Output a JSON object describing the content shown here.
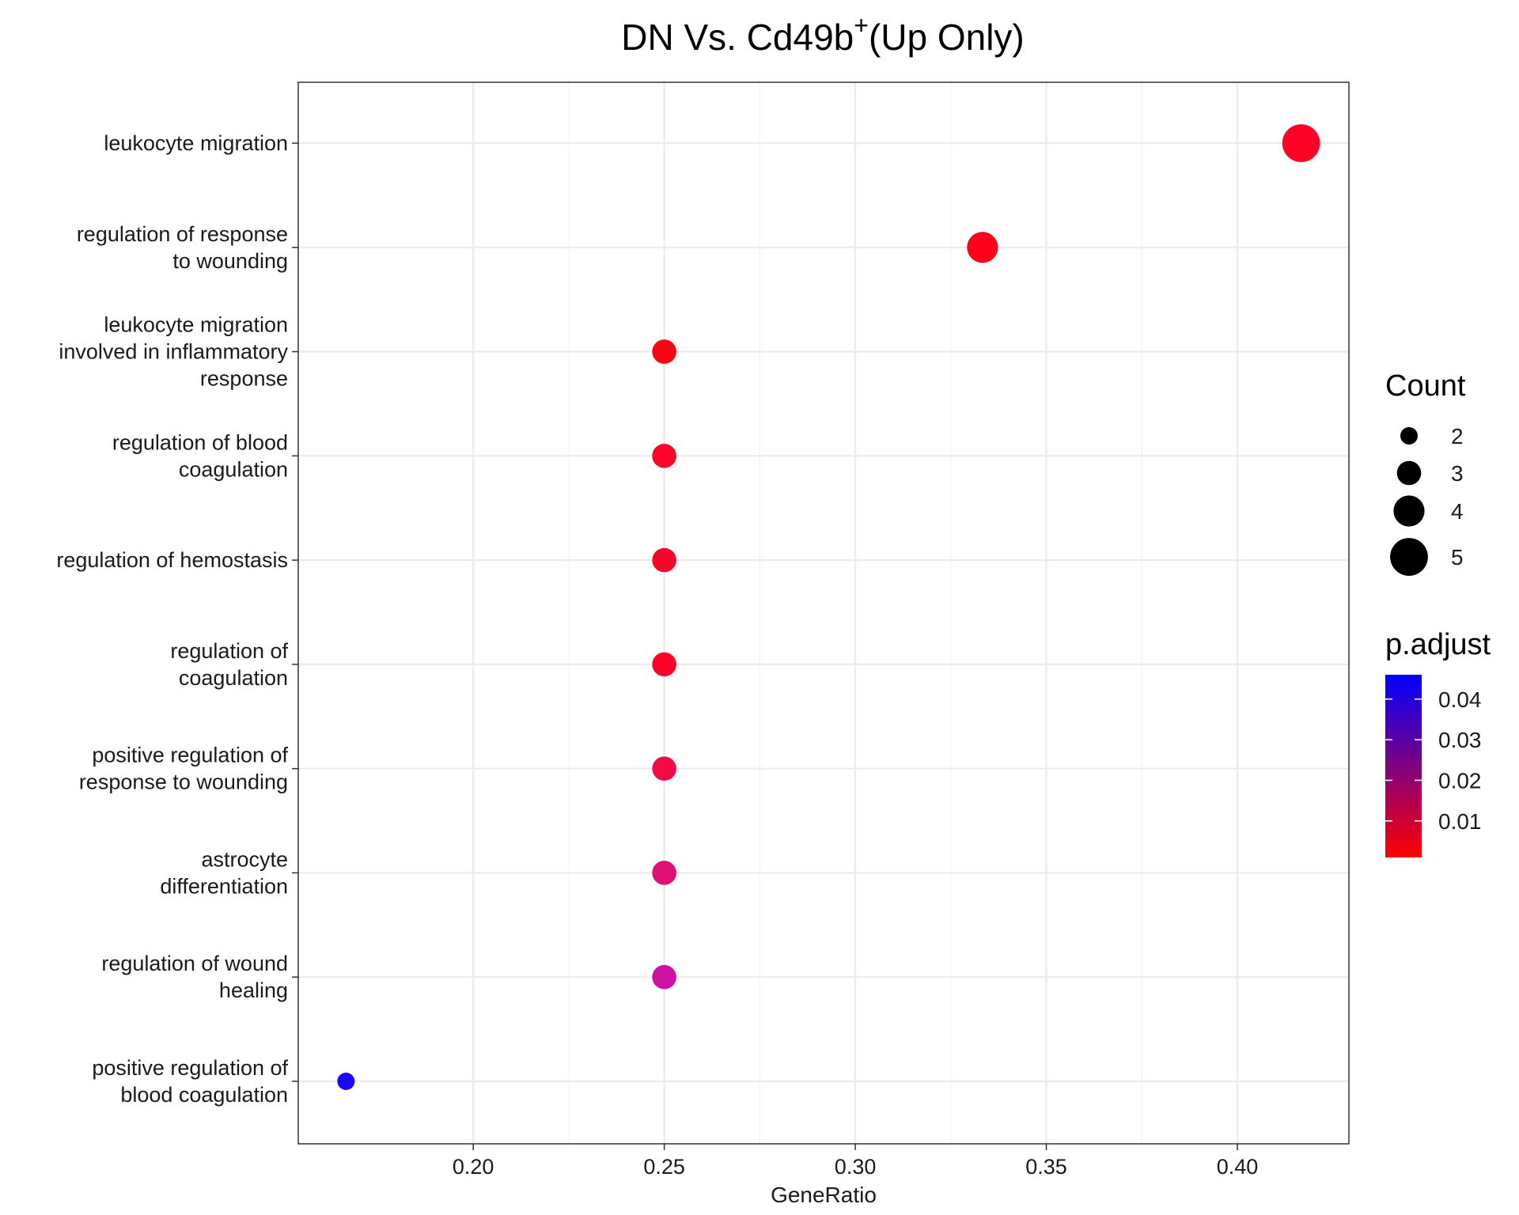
{
  "chart_data": {
    "type": "scatter",
    "title": "DN Vs. Cd49b",
    "title_sup": "+",
    "title_suffix": "(Up Only)",
    "xlabel": "GeneRatio",
    "ylabel": "",
    "xlim": [
      0.1542,
      0.4292
    ],
    "xticks": [
      0.2,
      0.25,
      0.3,
      0.35,
      0.4
    ],
    "xtick_labels": [
      "0.20",
      "0.25",
      "0.30",
      "0.35",
      "0.40"
    ],
    "grid": true,
    "categories": [
      "leukocyte migration",
      "regulation of response to wounding",
      "leukocyte migration involved in inflammatory response",
      "regulation of blood coagulation",
      "regulation of hemostasis",
      "regulation of coagulation",
      "positive regulation of response to wounding",
      "astrocyte differentiation",
      "regulation of wound healing",
      "positive regulation of blood coagulation"
    ],
    "category_label_lines": [
      [
        "leukocyte migration"
      ],
      [
        "regulation of response",
        "to wounding"
      ],
      [
        "leukocyte migration",
        "involved in inflammatory",
        "response"
      ],
      [
        "regulation of blood",
        "coagulation"
      ],
      [
        "regulation of hemostasis"
      ],
      [
        "regulation of",
        "coagulation"
      ],
      [
        "positive regulation of",
        "response to wounding"
      ],
      [
        "astrocyte",
        "differentiation"
      ],
      [
        "regulation of wound",
        "healing"
      ],
      [
        "positive regulation of",
        "blood coagulation"
      ]
    ],
    "points": [
      {
        "term": "leukocyte migration",
        "gene_ratio": 0.4167,
        "count": 5,
        "p_adjust": 0.003,
        "color": "#fd0427"
      },
      {
        "term": "regulation of response to wounding",
        "gene_ratio": 0.3333,
        "count": 4,
        "p_adjust": 0.002,
        "color": "#fe0219"
      },
      {
        "term": "leukocyte migration involved in inflammatory response",
        "gene_ratio": 0.25,
        "count": 3,
        "p_adjust": 0.001,
        "color": "#ff0110"
      },
      {
        "term": "regulation of blood coagulation",
        "gene_ratio": 0.25,
        "count": 3,
        "p_adjust": 0.004,
        "color": "#fc0429"
      },
      {
        "term": "regulation of hemostasis",
        "gene_ratio": 0.25,
        "count": 3,
        "p_adjust": 0.004,
        "color": "#fc0429"
      },
      {
        "term": "regulation of coagulation",
        "gene_ratio": 0.25,
        "count": 3,
        "p_adjust": 0.004,
        "color": "#fc0429"
      },
      {
        "term": "positive regulation of response to wounding",
        "gene_ratio": 0.25,
        "count": 3,
        "p_adjust": 0.008,
        "color": "#f40a45"
      },
      {
        "term": "astrocyte differentiation",
        "gene_ratio": 0.25,
        "count": 3,
        "p_adjust": 0.02,
        "color": "#de0f77"
      },
      {
        "term": "regulation of wound healing",
        "gene_ratio": 0.25,
        "count": 3,
        "p_adjust": 0.027,
        "color": "#cc12a1"
      },
      {
        "term": "positive regulation of blood coagulation",
        "gene_ratio": 0.1667,
        "count": 2,
        "p_adjust": 0.046,
        "color": "#1b05f8"
      }
    ],
    "legend_count": {
      "title": "Count",
      "items": [
        {
          "label": "2",
          "value": 2
        },
        {
          "label": "3",
          "value": 3
        },
        {
          "label": "4",
          "value": 4
        },
        {
          "label": "5",
          "value": 5
        }
      ]
    },
    "legend_color": {
      "title": "p.adjust",
      "range": [
        0.001,
        0.046
      ],
      "low_color": "#ff0000",
      "high_color": "#0000ff",
      "ticks": [
        {
          "label": "0.04",
          "value": 0.04
        },
        {
          "label": "0.03",
          "value": 0.03
        },
        {
          "label": "0.02",
          "value": 0.02
        },
        {
          "label": "0.01",
          "value": 0.01
        }
      ]
    },
    "legend_placement": "right"
  }
}
